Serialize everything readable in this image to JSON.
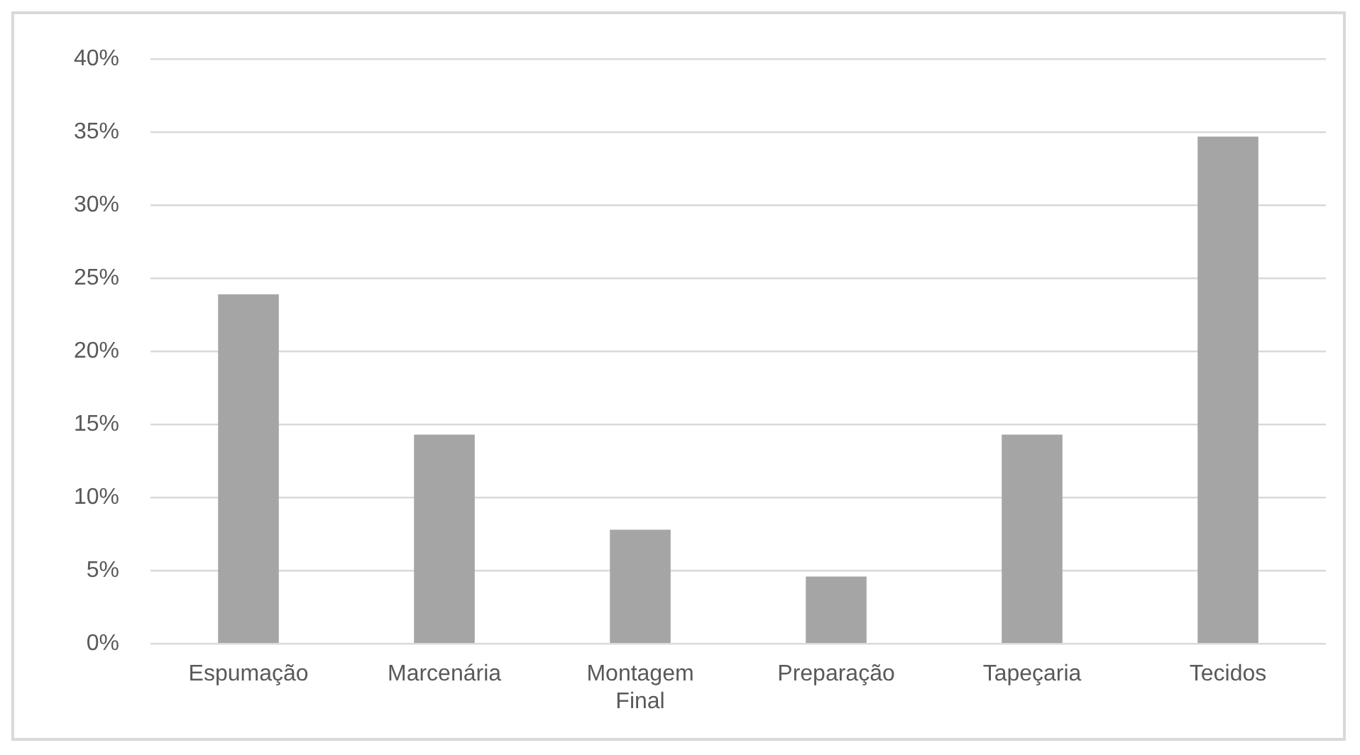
{
  "chart_data": {
    "type": "bar",
    "categories": [
      "Espumação",
      "Marcenária",
      "Montagem Final",
      "Preparação",
      "Tapeçaria",
      "Tecidos"
    ],
    "values": [
      23.9,
      14.3,
      7.8,
      4.6,
      14.3,
      34.7
    ],
    "color": "#a5a5a5",
    "ylim": [
      0,
      40
    ],
    "yticks": [
      {
        "value": 0,
        "label": "0%"
      },
      {
        "value": 5,
        "label": "5%"
      },
      {
        "value": 10,
        "label": "10%"
      },
      {
        "value": 15,
        "label": "15%"
      },
      {
        "value": 20,
        "label": "20%"
      },
      {
        "value": 25,
        "label": "25%"
      },
      {
        "value": 30,
        "label": "30%"
      },
      {
        "value": 35,
        "label": "35%"
      },
      {
        "value": 40,
        "label": "40%"
      }
    ],
    "grid": "y",
    "legend": false
  }
}
